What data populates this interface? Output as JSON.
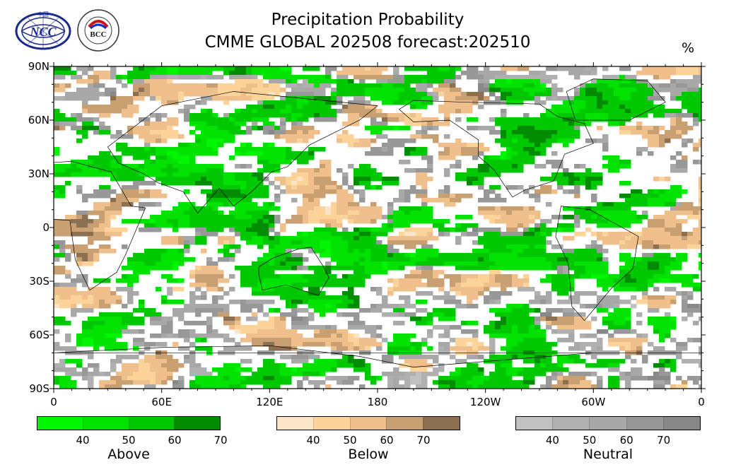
{
  "title_line1": "Precipitation Probability",
  "title_line2": "CMME GLOBAL 202508 forecast:202510",
  "unit": "%",
  "logos": {
    "ncc": {
      "text": "NCC",
      "subtext": "中国"
    },
    "bcc": {
      "text": "BCC",
      "ring": "BEIJING CLIMATE CENTER"
    }
  },
  "lat_labels": [
    "90N",
    "60N",
    "30N",
    "0",
    "30S",
    "60S",
    "90S"
  ],
  "lon_labels": [
    "0",
    "60E",
    "120E",
    "180",
    "120W",
    "60W",
    "0"
  ],
  "legends": [
    {
      "name": "Above",
      "ticks": [
        "40",
        "50",
        "60",
        "70"
      ],
      "colors": [
        "#00f500",
        "#00e200",
        "#00c800",
        "#008c00"
      ]
    },
    {
      "name": "Below",
      "ticks": [
        "40",
        "50",
        "60",
        "70"
      ],
      "colors": [
        "#fde6c8",
        "#fcd49a",
        "#f0c08c",
        "#c8a072",
        "#8c7050"
      ]
    },
    {
      "name": "Neutral",
      "ticks": [
        "40",
        "50",
        "60",
        "70"
      ],
      "colors": [
        "#c0c0c0",
        "#b0b0b0",
        "#a8a8a8",
        "#989898",
        "#888888"
      ]
    }
  ]
}
